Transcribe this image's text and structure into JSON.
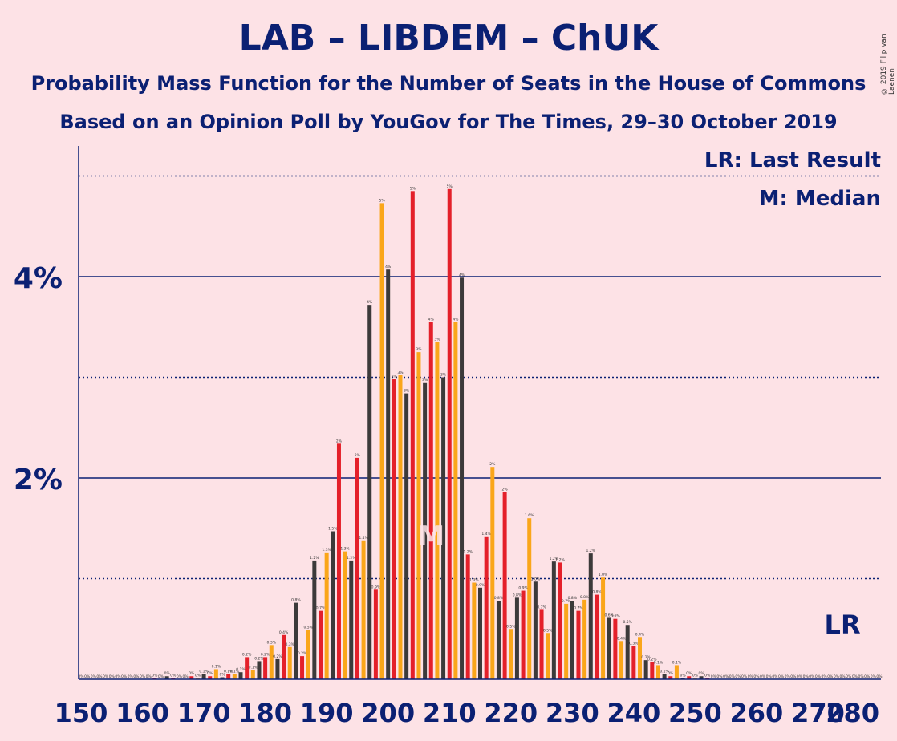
{
  "header": {
    "title": "LAB – LIBDEM – ChUK",
    "subtitle1": "Probability Mass Function for the Number of Seats in the House of Commons",
    "subtitle2": "Based on an Opinion Poll by YouGov for The Times, 29–30 October 2019",
    "copyright": "© 2019 Filip van Laenen"
  },
  "legend": {
    "lr": "LR: Last Result",
    "m": "M: Median"
  },
  "colors": {
    "red": "#E4202A",
    "orange": "#FAA61A",
    "dark": "#3C3A3A",
    "axis": "#0B2073",
    "background": "#FDE2E6",
    "median_marker": "#FDE2E6"
  },
  "chart_data": {
    "type": "bar",
    "xlim": [
      150,
      280
    ],
    "ylim": [
      0,
      5.3
    ],
    "ytick_labels": [
      "2%",
      "4%"
    ],
    "yticks": [
      2,
      4
    ],
    "dotted_gridlines": [
      1,
      3,
      5
    ],
    "xticks": [
      150,
      160,
      170,
      180,
      190,
      200,
      210,
      220,
      230,
      240,
      250,
      260,
      270,
      280
    ],
    "median_seat": 207,
    "median_label": "M",
    "last_result_seat": 274,
    "last_result_label": "LR",
    "x": [
      150,
      151,
      152,
      153,
      154,
      155,
      156,
      157,
      158,
      159,
      160,
      161,
      162,
      163,
      164,
      165,
      166,
      167,
      168,
      169,
      170,
      171,
      172,
      173,
      174,
      175,
      176,
      177,
      178,
      179,
      180,
      181,
      182,
      183,
      184,
      185,
      186,
      187,
      188,
      189,
      190,
      191,
      192,
      193,
      194,
      195,
      196,
      197,
      198,
      199,
      200,
      201,
      202,
      203,
      204,
      205,
      206,
      207,
      208,
      209,
      210,
      211,
      212,
      213,
      214,
      215,
      216,
      217,
      218,
      219,
      220,
      221,
      222,
      223,
      224,
      225,
      226,
      227,
      228,
      229,
      230,
      231,
      232,
      233,
      234,
      235,
      236,
      237,
      238,
      239,
      240,
      241,
      242,
      243,
      244,
      245,
      246,
      247,
      248,
      249,
      250,
      251,
      252,
      253,
      254,
      255,
      256,
      257,
      258,
      259,
      260,
      261,
      262,
      263,
      264,
      265,
      266,
      267,
      268,
      269,
      270,
      271,
      272,
      273,
      274,
      275,
      276,
      277,
      278,
      279,
      280
    ],
    "values": [
      0,
      0,
      0,
      0,
      0,
      0,
      0,
      0,
      0,
      0,
      0,
      0,
      0.01,
      0,
      0.03,
      0.01,
      0,
      0,
      0.03,
      0.01,
      0.05,
      0.03,
      0.1,
      0.02,
      0.05,
      0.05,
      0.07,
      0.22,
      0.09,
      0.18,
      0.22,
      0.34,
      0.2,
      0.44,
      0.32,
      0.76,
      0.23,
      0.49,
      1.18,
      0.68,
      1.26,
      1.47,
      2.34,
      1.27,
      1.18,
      2.2,
      1.38,
      3.72,
      0.89,
      4.73,
      4.07,
      2.98,
      3.02,
      2.84,
      4.85,
      3.25,
      2.95,
      3.55,
      3.35,
      3.0,
      4.87,
      3.55,
      3.99,
      1.24,
      0.96,
      0.91,
      1.42,
      2.11,
      0.78,
      1.86,
      0.5,
      0.81,
      0.88,
      1.6,
      0.97,
      0.69,
      0.46,
      1.17,
      1.16,
      0.75,
      0.78,
      0.68,
      0.79,
      1.25,
      0.84,
      1.01,
      0.61,
      0.6,
      0.38,
      0.54,
      0.33,
      0.42,
      0.19,
      0.17,
      0.14,
      0.05,
      0.03,
      0.14,
      0.01,
      0.03,
      0.01,
      0.03,
      0.01,
      0,
      0,
      0,
      0,
      0,
      0,
      0,
      0,
      0,
      0,
      0,
      0,
      0,
      0,
      0,
      0,
      0,
      0,
      0,
      0,
      0,
      0,
      0,
      0,
      0,
      0,
      0,
      0
    ],
    "value_labels": [
      "0%",
      "0%",
      "0%",
      "0%",
      "0%",
      "0%",
      "0%",
      "0%",
      "0%",
      "0%",
      "0%",
      "0%",
      "0%",
      "0%",
      "0%",
      "0%",
      "0%",
      "0%",
      "0%",
      "0%",
      "0.1%",
      "0%",
      "0.1%",
      "0%",
      "0.1%",
      "0.1%",
      "0.1%",
      "0.2%",
      "0.1%",
      "0.2%",
      "0.2%",
      "0.3%",
      "0.2%",
      "0.4%",
      "0.3%",
      "0.8%",
      "0.2%",
      "0.5%",
      "1.2%",
      "0.7%",
      "1.3%",
      "1.5%",
      "2%",
      "1.3%",
      "1.2%",
      "2%",
      "1.4%",
      "4%",
      "0.9%",
      "5%",
      "4%",
      "3%",
      "3%",
      "3%",
      "5%",
      "3%",
      "3%",
      "4%",
      "3%",
      "3%",
      "5%",
      "4%",
      "4%",
      "1.2%",
      "1.0%",
      "0.9%",
      "1.4%",
      "2%",
      "0.8%",
      "2%",
      "0.5%",
      "0.8%",
      "0.9%",
      "1.6%",
      "1.0%",
      "0.7%",
      "0.5%",
      "1.2%",
      "1.2%",
      "0.7%",
      "0.8%",
      "0.7%",
      "0.8%",
      "1.2%",
      "0.8%",
      "1.0%",
      "0.6%",
      "0.6%",
      "0.4%",
      "0.5%",
      "0.3%",
      "0.4%",
      "0.2%",
      "0.2%",
      "0.1%",
      "0.1%",
      "0%",
      "0.1%",
      "0%",
      "0%",
      "0%",
      "0%",
      "0%",
      "0%",
      "0%",
      "0%",
      "0%",
      "0%",
      "0%",
      "0%",
      "0%",
      "0%",
      "0%",
      "0%",
      "0%",
      "0%",
      "0%",
      "0%",
      "0%",
      "0%",
      "0%",
      "0%",
      "0%",
      "0%",
      "0%",
      "0%",
      "0%",
      "0%",
      "0%",
      "0%",
      "0%"
    ]
  }
}
